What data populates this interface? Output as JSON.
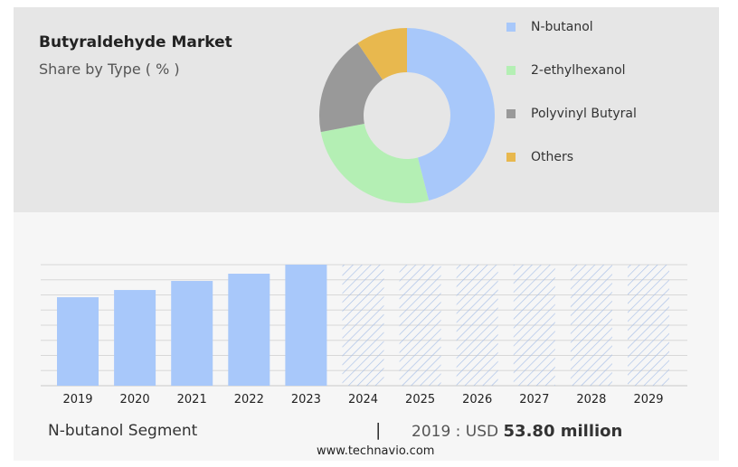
{
  "header": {
    "title": "Butyraldehyde Market",
    "subtitle": "Share by Type ( % )"
  },
  "chart_data": [
    {
      "type": "pie",
      "variant": "donut",
      "title": "Butyraldehyde Market",
      "subtitle": "Share by Type ( % )",
      "legend_position": "right",
      "labels": [
        "N-butanol",
        "2-ethylhexanol",
        "Polyvinyl Butyral",
        "Others"
      ],
      "values": [
        46,
        26,
        18.5,
        9.5
      ],
      "colors": [
        "#a8c8fa",
        "#b4efb4",
        "#999999",
        "#e8b84e"
      ]
    },
    {
      "type": "bar",
      "title": "N-butanol Segment",
      "categories": [
        "2019",
        "2020",
        "2021",
        "2022",
        "2023",
        "2024",
        "2025",
        "2026",
        "2027",
        "2028",
        "2029"
      ],
      "values": [
        53.8,
        58.2,
        63.7,
        68.1,
        73.6,
        null,
        null,
        null,
        null,
        null,
        null
      ],
      "forecast": [
        false,
        false,
        false,
        false,
        false,
        true,
        true,
        true,
        true,
        true,
        true
      ],
      "ylim": [
        0,
        73.6
      ],
      "grid": true,
      "xlabel": "",
      "ylabel": "",
      "color": "#a8c8fa",
      "hatch_color": "#a8c0e8"
    }
  ],
  "footer": {
    "segment": "N-butanol Segment",
    "separator": "|",
    "year_label": "2019 : USD",
    "value": "53.80 million",
    "site": "www.technavio.com"
  }
}
